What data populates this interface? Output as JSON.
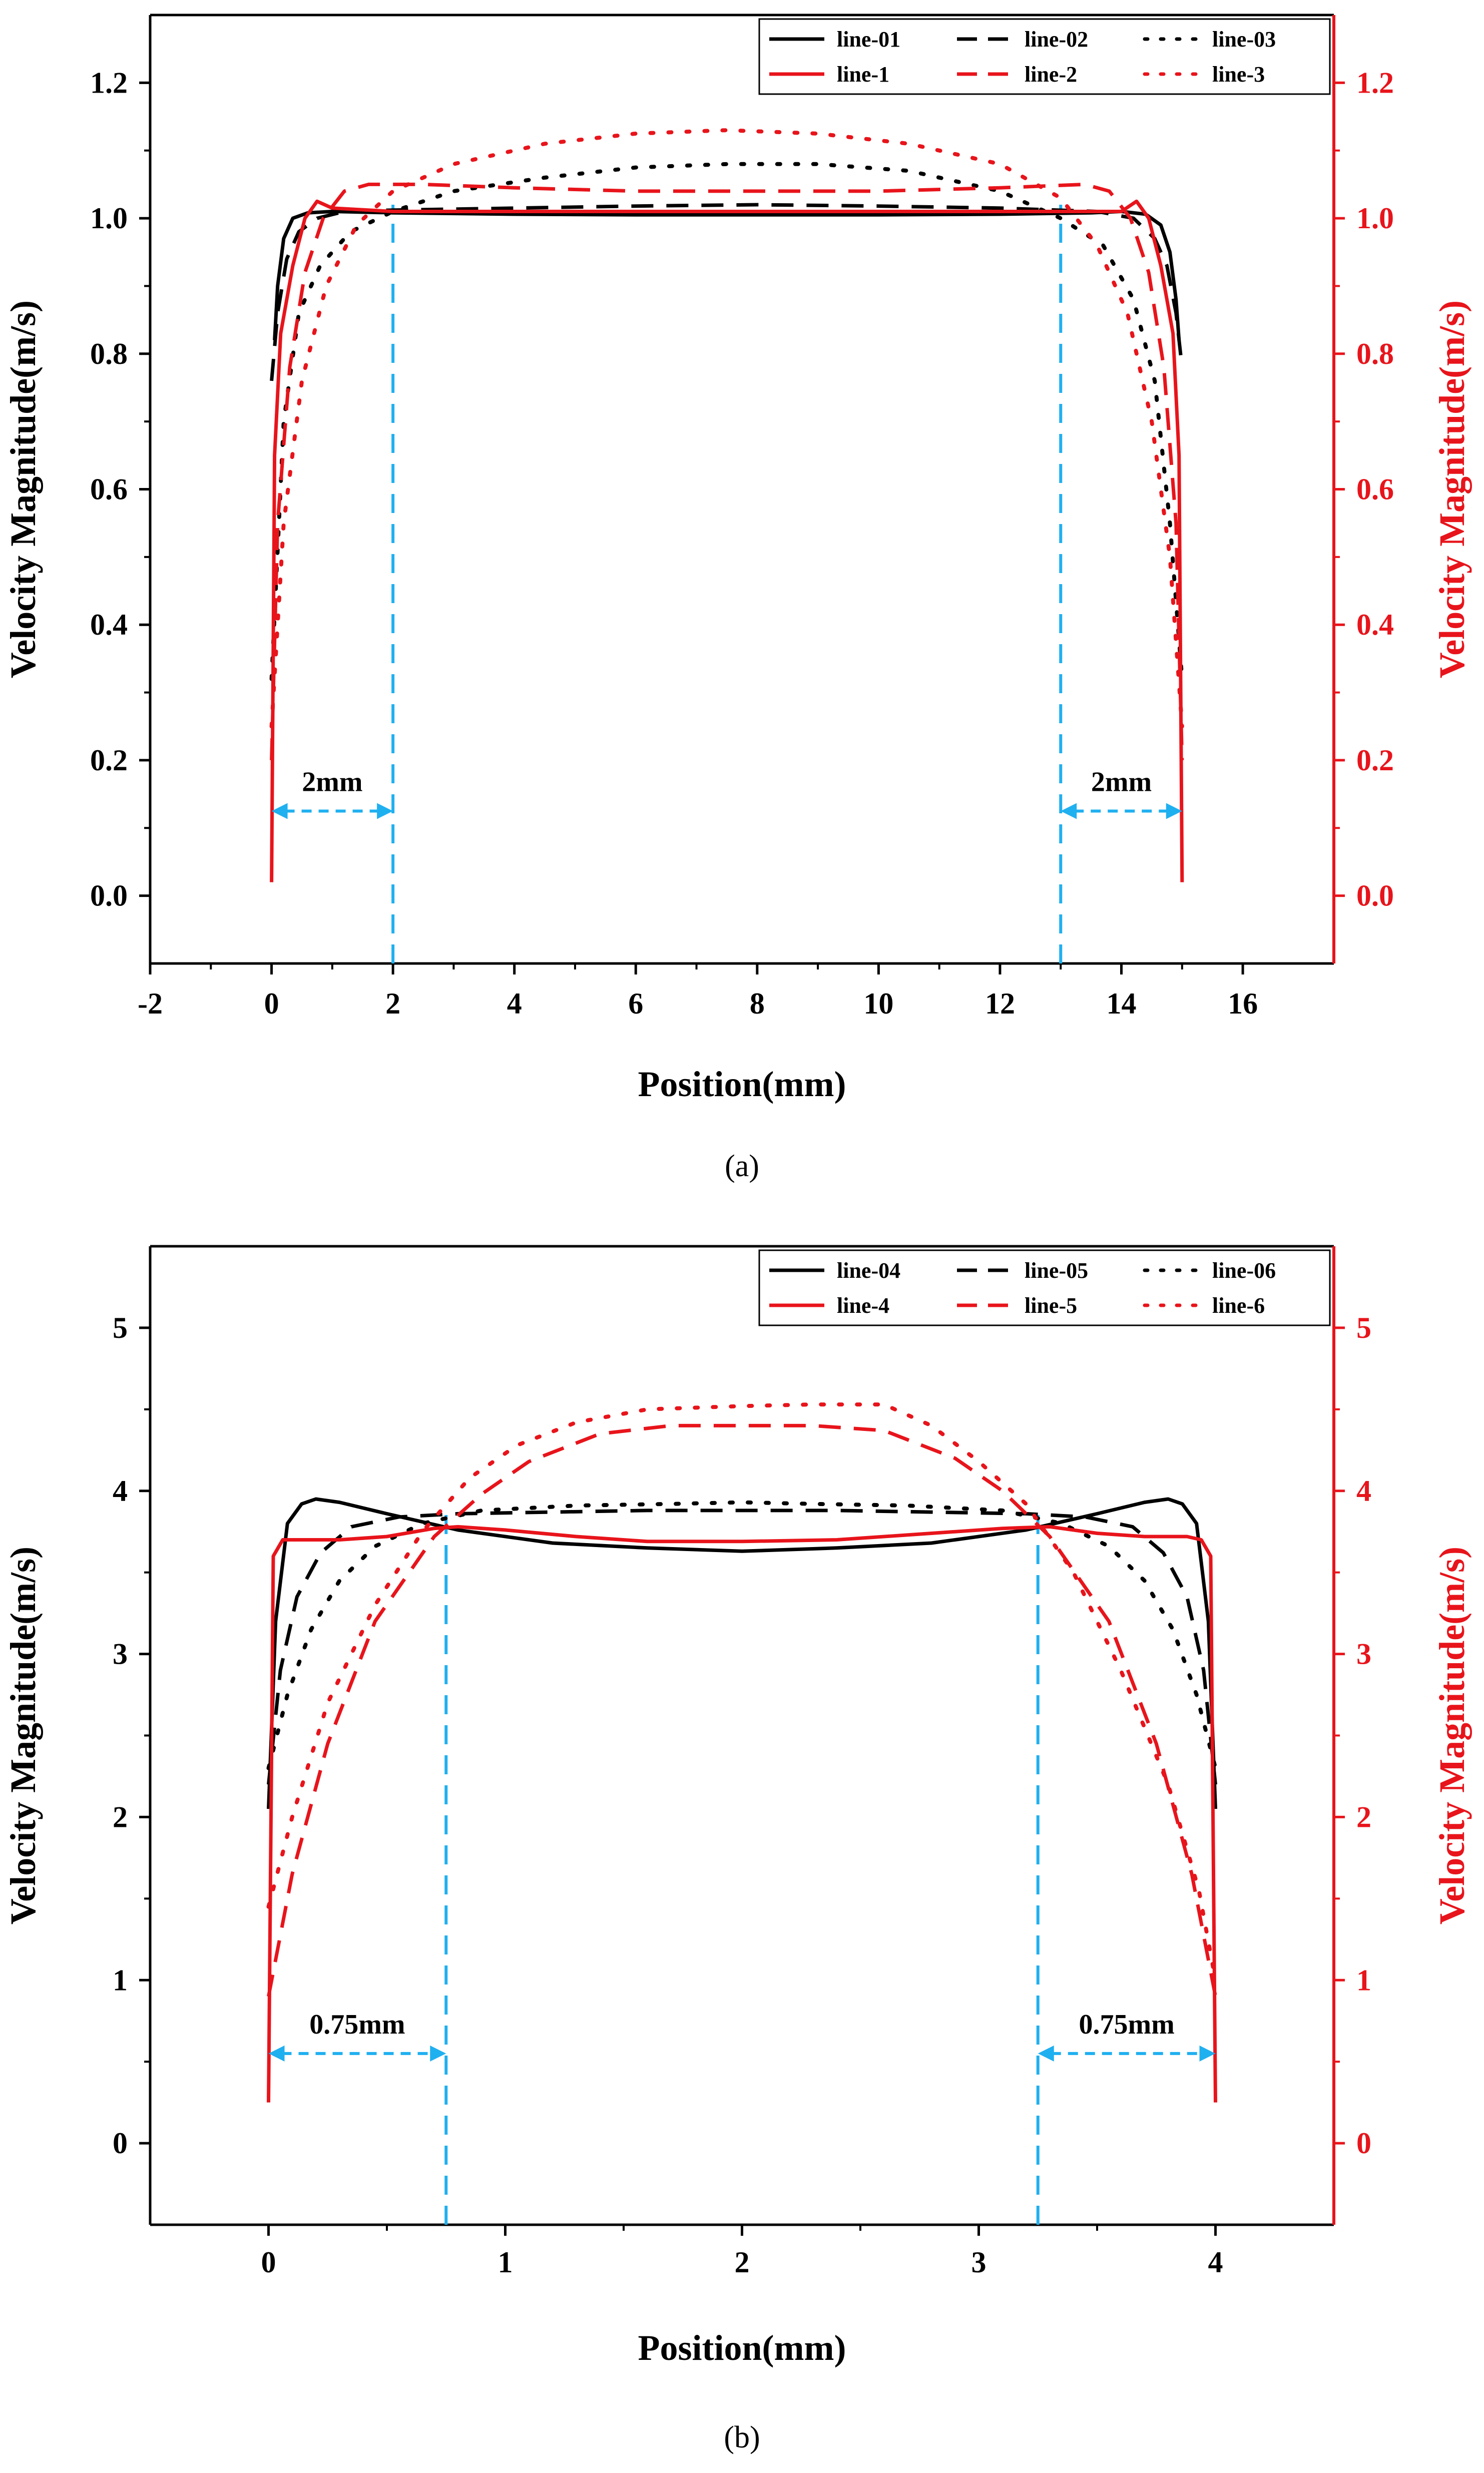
{
  "chart_data": [
    {
      "type": "line",
      "caption": "(a)",
      "xlabel": "Position(mm)",
      "ylabel": "Velocity Magnitude(m/s)",
      "ylabel_right": "Velocity Magnitude(m/s)",
      "xlim": [
        -2,
        17.5
      ],
      "ylim": [
        -0.1,
        1.3
      ],
      "xticks": [
        -2,
        0,
        2,
        4,
        6,
        8,
        10,
        12,
        14,
        16
      ],
      "xtick_labels": [
        "-2",
        "0",
        "2",
        "4",
        "6",
        "8",
        "10",
        "12",
        "14",
        "16"
      ],
      "yticks": [
        0.0,
        0.2,
        0.4,
        0.6,
        0.8,
        1.0,
        1.2
      ],
      "ytick_labels": [
        "0.0",
        "0.2",
        "0.4",
        "0.6",
        "0.8",
        "1.0",
        "1.2"
      ],
      "right_axis_color": "#e8141b",
      "legend_position": "top-right",
      "series": [
        {
          "name": "line-01",
          "color": "#000000",
          "style": "solid",
          "x": [
            0.05,
            0.1,
            0.2,
            0.35,
            0.6,
            1.0,
            2,
            4,
            6,
            8,
            10,
            12,
            13.5,
            14.0,
            14.4,
            14.65,
            14.8,
            14.9,
            14.95
          ],
          "y": [
            0.82,
            0.9,
            0.97,
            1.0,
            1.008,
            1.01,
            1.008,
            1.006,
            1.005,
            1.005,
            1.005,
            1.006,
            1.008,
            1.01,
            1.006,
            0.99,
            0.95,
            0.88,
            0.82
          ]
        },
        {
          "name": "line-02",
          "color": "#000000",
          "style": "dashed",
          "x": [
            0.0,
            0.1,
            0.25,
            0.45,
            0.75,
            1.2,
            2,
            4,
            6,
            8,
            10,
            12,
            13.6,
            14.2,
            14.55,
            14.75,
            14.9,
            15.0
          ],
          "y": [
            0.76,
            0.86,
            0.94,
            0.98,
            1.0,
            1.01,
            1.012,
            1.015,
            1.018,
            1.02,
            1.018,
            1.015,
            1.01,
            1.0,
            0.97,
            0.93,
            0.86,
            0.78
          ]
        },
        {
          "name": "line-03",
          "color": "#000000",
          "style": "dotted",
          "x": [
            0.0,
            0.2,
            0.45,
            0.8,
            1.3,
            2.0,
            3.0,
            4.5,
            6.0,
            7.5,
            9.0,
            10.5,
            12.0,
            13.0,
            13.7,
            14.2,
            14.55,
            14.8,
            15.0
          ],
          "y": [
            0.32,
            0.7,
            0.86,
            0.93,
            0.98,
            1.01,
            1.04,
            1.06,
            1.075,
            1.08,
            1.08,
            1.07,
            1.04,
            1.0,
            0.96,
            0.88,
            0.76,
            0.55,
            0.32
          ]
        },
        {
          "name": "line-1",
          "color": "#e8141b",
          "style": "solid",
          "x": [
            0.0,
            0.05,
            0.15,
            0.35,
            0.55,
            0.75,
            1.0,
            2,
            4,
            6,
            8,
            10,
            12,
            14.0,
            14.25,
            14.45,
            14.65,
            14.85,
            14.95,
            15.0
          ],
          "y": [
            0.02,
            0.65,
            0.83,
            0.93,
            1.0,
            1.025,
            1.015,
            1.01,
            1.01,
            1.01,
            1.01,
            1.01,
            1.01,
            1.01,
            1.025,
            1.0,
            0.93,
            0.83,
            0.65,
            0.02
          ]
        },
        {
          "name": "line-2",
          "color": "#e8141b",
          "style": "dashed",
          "x": [
            0.0,
            0.1,
            0.3,
            0.55,
            0.85,
            1.2,
            1.6,
            2.5,
            4,
            6,
            8,
            10,
            12,
            13.4,
            13.8,
            14.15,
            14.45,
            14.7,
            14.9,
            15.0
          ],
          "y": [
            0.2,
            0.55,
            0.78,
            0.92,
            1.0,
            1.04,
            1.05,
            1.05,
            1.045,
            1.04,
            1.04,
            1.04,
            1.045,
            1.05,
            1.04,
            1.0,
            0.92,
            0.78,
            0.55,
            0.2
          ]
        },
        {
          "name": "line-3",
          "color": "#e8141b",
          "style": "dotted",
          "x": [
            0.0,
            0.2,
            0.5,
            0.9,
            1.4,
            2.0,
            3.0,
            4.5,
            6.0,
            7.5,
            9.0,
            10.5,
            12.0,
            13.0,
            13.6,
            14.1,
            14.5,
            14.8,
            15.0
          ],
          "y": [
            0.25,
            0.55,
            0.76,
            0.9,
            0.99,
            1.04,
            1.08,
            1.11,
            1.125,
            1.13,
            1.125,
            1.11,
            1.08,
            1.03,
            0.96,
            0.86,
            0.7,
            0.5,
            0.25
          ]
        }
      ],
      "annotations": [
        {
          "text": "2mm",
          "from": 0,
          "to": 2,
          "y": 0.125,
          "color": "#1fb0f0"
        },
        {
          "text": "2mm",
          "from": 13,
          "to": 15,
          "y": 0.125,
          "color": "#1fb0f0"
        }
      ],
      "vlines": [
        2,
        13
      ],
      "vline_color": "#1fb0f0"
    },
    {
      "type": "line",
      "caption": "(b)",
      "xlabel": "Position(mm)",
      "ylabel": "Velocity Magnitude(m/s)",
      "ylabel_right": "Velocity Magnitude(m/s)",
      "xlim": [
        -0.5,
        4.5
      ],
      "ylim": [
        -0.5,
        5.5
      ],
      "xticks": [
        0,
        1,
        2,
        3,
        4
      ],
      "xtick_labels": [
        "0",
        "1",
        "2",
        "3",
        "4"
      ],
      "yticks": [
        0,
        1,
        2,
        3,
        4,
        5
      ],
      "ytick_labels": [
        "0",
        "1",
        "2",
        "3",
        "4",
        "5"
      ],
      "right_axis_color": "#e8141b",
      "legend_position": "top-right",
      "series": [
        {
          "name": "line-04",
          "color": "#000000",
          "style": "solid",
          "x": [
            0.0,
            0.03,
            0.08,
            0.14,
            0.2,
            0.3,
            0.5,
            0.8,
            1.2,
            1.6,
            2.0,
            2.4,
            2.8,
            3.2,
            3.5,
            3.7,
            3.8,
            3.86,
            3.92,
            3.97,
            4.0
          ],
          "y": [
            2.05,
            3.2,
            3.8,
            3.92,
            3.95,
            3.93,
            3.86,
            3.76,
            3.68,
            3.65,
            3.63,
            3.65,
            3.68,
            3.76,
            3.86,
            3.93,
            3.95,
            3.92,
            3.8,
            3.2,
            2.05
          ]
        },
        {
          "name": "line-05",
          "color": "#000000",
          "style": "dashed",
          "x": [
            0.0,
            0.05,
            0.12,
            0.22,
            0.35,
            0.55,
            0.8,
            1.2,
            1.6,
            2.0,
            2.4,
            2.8,
            3.2,
            3.45,
            3.65,
            3.78,
            3.88,
            3.95,
            4.0
          ],
          "y": [
            2.2,
            2.9,
            3.35,
            3.62,
            3.78,
            3.84,
            3.86,
            3.87,
            3.88,
            3.88,
            3.88,
            3.87,
            3.86,
            3.84,
            3.78,
            3.62,
            3.35,
            2.9,
            2.2
          ]
        },
        {
          "name": "line-06",
          "color": "#000000",
          "style": "dotted",
          "x": [
            0.0,
            0.08,
            0.18,
            0.3,
            0.45,
            0.65,
            0.9,
            1.3,
            1.7,
            2.0,
            2.3,
            2.7,
            3.1,
            3.35,
            3.55,
            3.7,
            3.82,
            3.92,
            4.0
          ],
          "y": [
            2.3,
            2.75,
            3.15,
            3.45,
            3.66,
            3.8,
            3.88,
            3.91,
            3.92,
            3.93,
            3.92,
            3.91,
            3.88,
            3.8,
            3.66,
            3.45,
            3.15,
            2.75,
            2.3
          ]
        },
        {
          "name": "line-4",
          "color": "#e8141b",
          "style": "solid",
          "x": [
            0.0,
            0.02,
            0.06,
            0.12,
            0.3,
            0.5,
            0.7,
            0.8,
            1.0,
            1.3,
            1.6,
            2.0,
            2.4,
            2.8,
            3.1,
            3.3,
            3.5,
            3.7,
            3.88,
            3.94,
            3.98,
            4.0
          ],
          "y": [
            0.25,
            3.6,
            3.7,
            3.7,
            3.7,
            3.72,
            3.77,
            3.78,
            3.76,
            3.72,
            3.69,
            3.69,
            3.7,
            3.74,
            3.77,
            3.78,
            3.74,
            3.72,
            3.72,
            3.7,
            3.6,
            0.25
          ]
        },
        {
          "name": "line-5",
          "color": "#e8141b",
          "style": "dashed",
          "x": [
            0.0,
            0.1,
            0.25,
            0.45,
            0.7,
            0.9,
            1.1,
            1.4,
            1.7,
            2.0,
            2.3,
            2.6,
            2.9,
            3.1,
            3.3,
            3.55,
            3.75,
            3.9,
            4.0
          ],
          "y": [
            0.9,
            1.65,
            2.45,
            3.2,
            3.72,
            3.98,
            4.18,
            4.35,
            4.4,
            4.4,
            4.4,
            4.37,
            4.2,
            4.0,
            3.72,
            3.2,
            2.45,
            1.65,
            0.9
          ]
        },
        {
          "name": "line-6",
          "color": "#e8141b",
          "style": "dotted",
          "x": [
            0.0,
            0.1,
            0.25,
            0.45,
            0.65,
            0.85,
            1.05,
            1.3,
            1.6,
            2.0,
            2.3,
            2.6,
            2.8,
            3.0,
            3.2,
            3.4,
            3.6,
            3.8,
            3.93,
            4.0
          ],
          "y": [
            1.45,
            2.0,
            2.7,
            3.3,
            3.75,
            4.08,
            4.28,
            4.42,
            4.5,
            4.52,
            4.53,
            4.53,
            4.4,
            4.18,
            3.92,
            3.5,
            2.9,
            2.2,
            1.55,
            1.0
          ]
        }
      ],
      "annotations": [
        {
          "text": "0.75mm",
          "from": 0,
          "to": 0.75,
          "y": 0.55,
          "color": "#1fb0f0"
        },
        {
          "text": "0.75mm",
          "from": 3.25,
          "to": 4.0,
          "y": 0.55,
          "color": "#1fb0f0"
        }
      ],
      "vlines": [
        0.75,
        3.25
      ],
      "vline_color": "#1fb0f0"
    }
  ]
}
